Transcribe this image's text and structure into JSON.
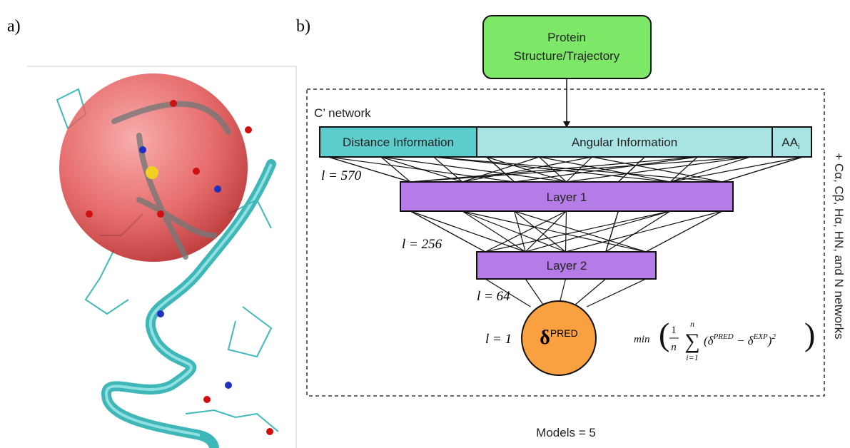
{
  "panel_a": {
    "label": "a)"
  },
  "panel_b": {
    "label": "b)",
    "source_node": {
      "line1": "Protein",
      "line2": "Structure/Trajectory"
    },
    "network_label": "C’ network",
    "inputs": {
      "distance": "Distance Information",
      "angular": "Angular Information",
      "aa": {
        "text": "AA",
        "sub": "i"
      }
    },
    "layers": [
      "Layer 1",
      "Layer 2"
    ],
    "size_labels": [
      "l = 570",
      "l = 256",
      "l = 64",
      "l = 1"
    ],
    "output_node": {
      "symbol": "δ",
      "sup": "PRED"
    },
    "loss": {
      "min": "min",
      "num": "1",
      "den": "n",
      "sum": "∑",
      "sum_top": "n",
      "sum_bottom": "i=1",
      "body1": "(δ",
      "sup1": "PRED",
      "body2": " − δ",
      "sup2": "EXP",
      "body3": ")",
      "sup3": "2"
    },
    "side_note": "+ Cα, Cβ, Hα, HN, and N networks",
    "models": "Models = 5"
  }
}
